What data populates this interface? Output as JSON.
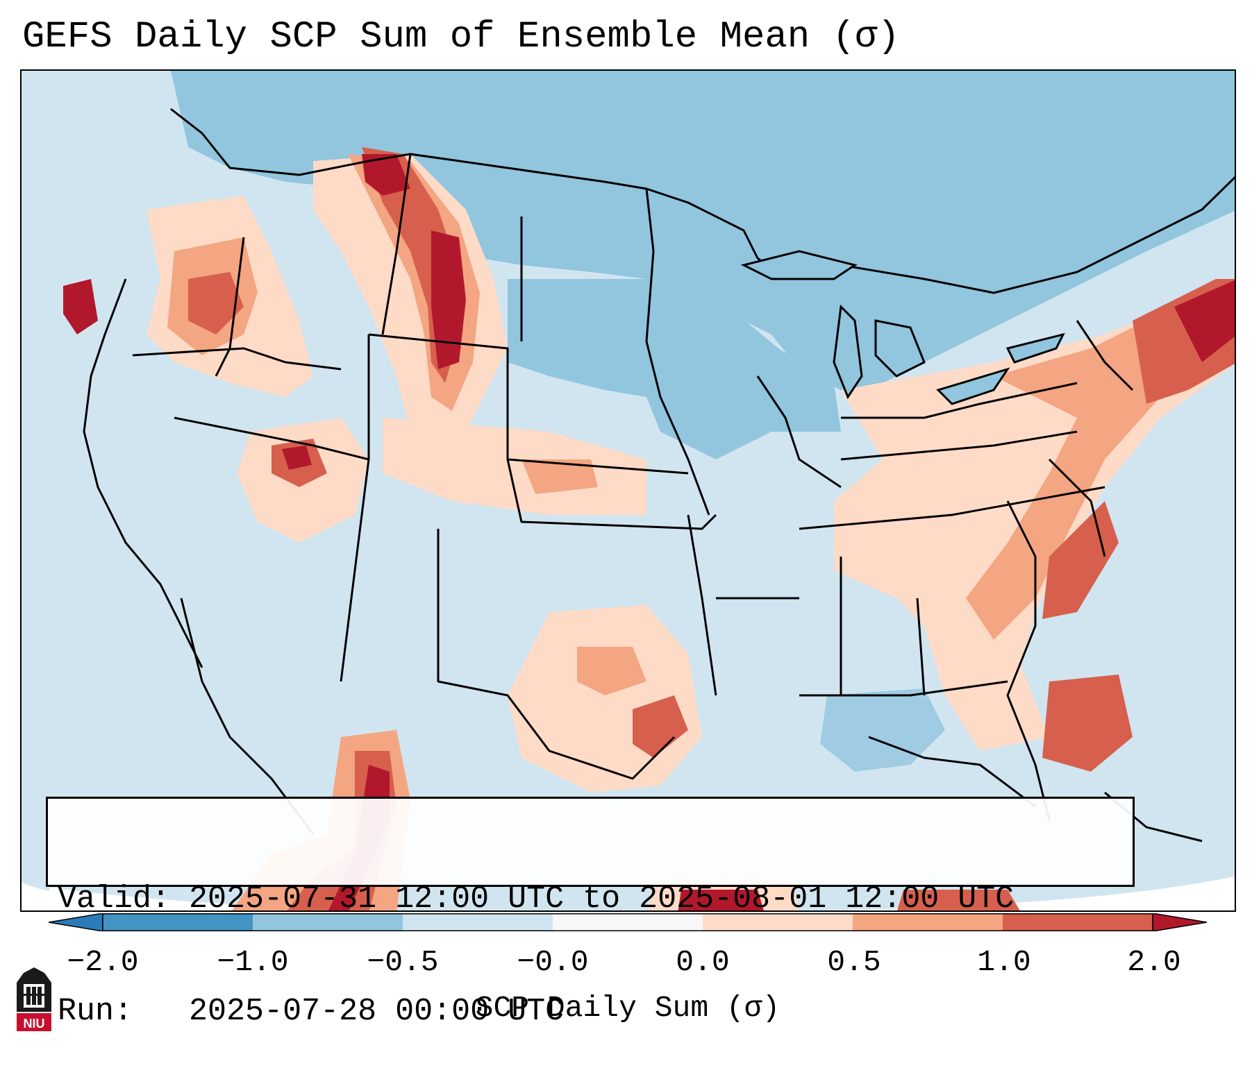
{
  "title": "GEFS Daily SCP Sum of Ensemble Mean (σ)",
  "info": {
    "valid_label": "Valid:",
    "valid_value": "2025-07-31 12:00 UTC to 2025-08-01 12:00 UTC",
    "run_label": "Run:",
    "run_value": "2025-07-28 00:00 UTC"
  },
  "colorbar": {
    "label": "SCP Daily Sum (σ)",
    "ticks": [
      "−2.0",
      "−1.0",
      "−0.5",
      "−0.0",
      "0.0",
      "0.5",
      "1.0",
      "2.0"
    ],
    "bins": [
      {
        "color": "#2b7bba",
        "from": "under",
        "to": "−2.0"
      },
      {
        "color": "#4393c3",
        "from": "−2.0",
        "to": "−1.0"
      },
      {
        "color": "#92c5de",
        "from": "−1.0",
        "to": "−0.5"
      },
      {
        "color": "#d1e5f0",
        "from": "−0.5",
        "to": "−0.0"
      },
      {
        "color": "#f7f7f7",
        "from": "−0.0",
        "to": "0.0"
      },
      {
        "color": "#fddbc7",
        "from": "0.0",
        "to": "0.5"
      },
      {
        "color": "#f4a582",
        "from": "0.5",
        "to": "1.0"
      },
      {
        "color": "#d6604d",
        "from": "1.0",
        "to": "2.0"
      },
      {
        "color": "#b2182b",
        "from": "2.0",
        "to": "over"
      }
    ]
  },
  "logo": {
    "text": "NIU",
    "color": "#c8102e"
  },
  "colors": {
    "background_light_blue": "#d1e5f0",
    "mid_blue": "#92c5de",
    "dark_red": "#b2182b",
    "ocean_white": "#ffffff"
  }
}
